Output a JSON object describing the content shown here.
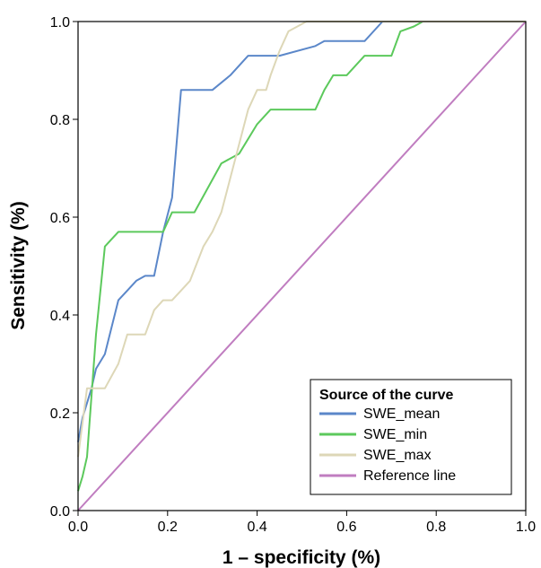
{
  "chart_data": {
    "type": "line",
    "xlabel": "1 – specificity (%)",
    "ylabel": "Sensitivity (%)",
    "xlim": [
      0,
      1
    ],
    "ylim": [
      0,
      1
    ],
    "x_ticks": [
      "0.0",
      "0.2",
      "0.4",
      "0.6",
      "0.8",
      "1.0"
    ],
    "y_ticks": [
      "0.0",
      "0.2",
      "0.4",
      "0.6",
      "0.8",
      "1.0"
    ],
    "grid": false,
    "legend": {
      "title": "Source of the curve",
      "position": "bottom-right"
    },
    "series": [
      {
        "name": "SWE_mean",
        "color": "#5b87c9",
        "points": [
          [
            0,
            0.14
          ],
          [
            0.01,
            0.19
          ],
          [
            0.03,
            0.25
          ],
          [
            0.04,
            0.29
          ],
          [
            0.06,
            0.32
          ],
          [
            0.09,
            0.43
          ],
          [
            0.11,
            0.45
          ],
          [
            0.13,
            0.47
          ],
          [
            0.15,
            0.48
          ],
          [
            0.17,
            0.48
          ],
          [
            0.19,
            0.57
          ],
          [
            0.21,
            0.64
          ],
          [
            0.23,
            0.86
          ],
          [
            0.26,
            0.86
          ],
          [
            0.3,
            0.86
          ],
          [
            0.34,
            0.89
          ],
          [
            0.38,
            0.93
          ],
          [
            0.45,
            0.93
          ],
          [
            0.53,
            0.95
          ],
          [
            0.55,
            0.96
          ],
          [
            0.57,
            0.96
          ],
          [
            0.6,
            0.96
          ],
          [
            0.64,
            0.96
          ],
          [
            0.68,
            1.0
          ],
          [
            1.0,
            1.0
          ]
        ]
      },
      {
        "name": "SWE_min",
        "color": "#5cc95c",
        "points": [
          [
            0,
            0.04
          ],
          [
            0.01,
            0.07
          ],
          [
            0.02,
            0.11
          ],
          [
            0.04,
            0.36
          ],
          [
            0.06,
            0.54
          ],
          [
            0.09,
            0.57
          ],
          [
            0.15,
            0.57
          ],
          [
            0.19,
            0.57
          ],
          [
            0.21,
            0.61
          ],
          [
            0.26,
            0.61
          ],
          [
            0.32,
            0.71
          ],
          [
            0.36,
            0.73
          ],
          [
            0.4,
            0.79
          ],
          [
            0.43,
            0.82
          ],
          [
            0.47,
            0.82
          ],
          [
            0.53,
            0.82
          ],
          [
            0.55,
            0.86
          ],
          [
            0.57,
            0.89
          ],
          [
            0.6,
            0.89
          ],
          [
            0.64,
            0.93
          ],
          [
            0.68,
            0.93
          ],
          [
            0.7,
            0.93
          ],
          [
            0.72,
            0.98
          ],
          [
            0.75,
            0.99
          ],
          [
            0.77,
            1.0
          ],
          [
            1.0,
            1.0
          ]
        ]
      },
      {
        "name": "SWE_max",
        "color": "#ddd7b7",
        "points": [
          [
            0,
            0.11
          ],
          [
            0.02,
            0.25
          ],
          [
            0.04,
            0.25
          ],
          [
            0.06,
            0.25
          ],
          [
            0.09,
            0.3
          ],
          [
            0.11,
            0.36
          ],
          [
            0.15,
            0.36
          ],
          [
            0.17,
            0.41
          ],
          [
            0.19,
            0.43
          ],
          [
            0.21,
            0.43
          ],
          [
            0.23,
            0.45
          ],
          [
            0.25,
            0.47
          ],
          [
            0.28,
            0.54
          ],
          [
            0.3,
            0.57
          ],
          [
            0.32,
            0.61
          ],
          [
            0.34,
            0.68
          ],
          [
            0.38,
            0.82
          ],
          [
            0.4,
            0.86
          ],
          [
            0.42,
            0.86
          ],
          [
            0.43,
            0.89
          ],
          [
            0.45,
            0.94
          ],
          [
            0.47,
            0.98
          ],
          [
            0.49,
            0.99
          ],
          [
            0.51,
            1.0
          ],
          [
            1.0,
            1.0
          ]
        ]
      },
      {
        "name": "Reference line",
        "color": "#c07dc0",
        "points": [
          [
            0,
            0
          ],
          [
            1,
            1
          ]
        ]
      }
    ]
  }
}
